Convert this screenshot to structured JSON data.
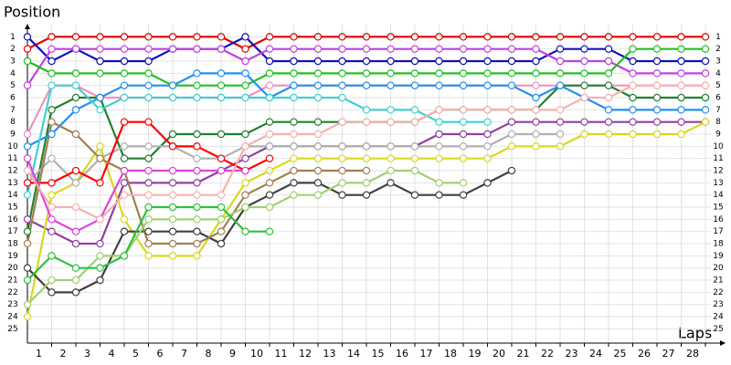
{
  "chart_data": {
    "type": "line",
    "y_label": "Position",
    "x_label": "Laps",
    "x": [
      0,
      1,
      2,
      3,
      4,
      5,
      6,
      7,
      8,
      9,
      10,
      11,
      12,
      13,
      14,
      15,
      16,
      17,
      18,
      19,
      20,
      21,
      22,
      23,
      24,
      25,
      26,
      27,
      28
    ],
    "xlim": [
      0,
      28
    ],
    "ylim": [
      26,
      0
    ],
    "xticks": [
      1,
      2,
      3,
      4,
      5,
      6,
      7,
      8,
      9,
      10,
      11,
      12,
      13,
      14,
      15,
      16,
      17,
      18,
      19,
      20,
      21,
      22,
      23,
      24,
      25,
      26,
      27,
      28
    ],
    "yticks": [
      1,
      2,
      3,
      4,
      5,
      6,
      7,
      8,
      9,
      10,
      11,
      12,
      13,
      14,
      15,
      16,
      17,
      18,
      19,
      20,
      21,
      22,
      23,
      24,
      25
    ],
    "grid": true,
    "series": [
      {
        "color": "#e00000",
        "values": [
          2,
          1,
          1,
          1,
          1,
          1,
          1,
          1,
          1,
          2,
          1,
          1,
          1,
          1,
          1,
          1,
          1,
          1,
          1,
          1,
          1,
          1,
          1,
          1,
          1,
          1,
          1,
          1,
          1
        ]
      },
      {
        "color": "#1010c0",
        "values": [
          1,
          3,
          2,
          3,
          3,
          3,
          2,
          2,
          2,
          1,
          3,
          3,
          3,
          3,
          3,
          3,
          3,
          3,
          3,
          3,
          3,
          3,
          2,
          2,
          2,
          3,
          3,
          3,
          3
        ]
      },
      {
        "color": "#c040e0",
        "values": [
          5,
          2,
          2,
          2,
          2,
          2,
          2,
          2,
          2,
          3,
          2,
          2,
          2,
          2,
          2,
          2,
          2,
          2,
          2,
          2,
          2,
          2,
          3,
          3,
          3,
          4,
          4,
          4,
          4
        ]
      },
      {
        "color": "#20c020",
        "values": [
          3,
          4,
          4,
          4,
          4,
          4,
          5,
          5,
          5,
          5,
          4,
          4,
          4,
          4,
          4,
          4,
          4,
          4,
          4,
          4,
          4,
          4,
          4,
          4,
          4,
          2,
          2,
          2,
          2
        ]
      },
      {
        "color": "#f090c0",
        "values": [
          9,
          5,
          5,
          6,
          6,
          6,
          6,
          6,
          6,
          6,
          5,
          5,
          5,
          5,
          5,
          5,
          5,
          5,
          5,
          5,
          5,
          5,
          5,
          5,
          5,
          5,
          5,
          5,
          5
        ]
      },
      {
        "color": "#208030",
        "values": [
          17,
          7,
          6,
          6,
          11,
          11,
          9,
          9,
          9,
          9,
          8,
          8,
          8,
          8,
          8,
          8,
          8,
          7,
          7,
          7,
          7,
          7,
          5,
          5,
          5,
          6,
          6,
          6,
          6
        ]
      },
      {
        "color": "#2090f0",
        "values": [
          10,
          9,
          7,
          6,
          5,
          5,
          5,
          4,
          4,
          4,
          6,
          5,
          5,
          5,
          5,
          5,
          5,
          5,
          5,
          5,
          5,
          6,
          5,
          6,
          7,
          7,
          7,
          7,
          7
        ]
      },
      {
        "color": "#40d0d0",
        "values": [
          14,
          5,
          5,
          7,
          6,
          6,
          6,
          6,
          6,
          6,
          6,
          6,
          6,
          6,
          7,
          7,
          7,
          8,
          8,
          8,
          null,
          null,
          null,
          null,
          null,
          null,
          null,
          null,
          null
        ]
      },
      {
        "color": "#9040a0",
        "values": [
          16,
          17,
          18,
          18,
          13,
          13,
          13,
          13,
          12,
          11,
          10,
          10,
          10,
          10,
          10,
          10,
          10,
          9,
          9,
          9,
          8,
          8,
          8,
          8,
          8,
          8,
          8,
          8,
          8
        ]
      },
      {
        "color": "#d8d820",
        "values": [
          24,
          14,
          13,
          10,
          16,
          19,
          19,
          19,
          16,
          13,
          12,
          11,
          11,
          11,
          11,
          11,
          11,
          11,
          11,
          11,
          10,
          10,
          10,
          9,
          9,
          9,
          9,
          9,
          8
        ]
      },
      {
        "color": "#b0b0b0",
        "values": [
          13,
          11,
          13,
          11,
          10,
          10,
          10,
          11,
          11,
          10,
          10,
          10,
          10,
          10,
          10,
          10,
          10,
          10,
          10,
          10,
          9,
          9,
          9,
          null,
          null,
          null,
          null,
          null,
          null
        ]
      },
      {
        "color": "#ff0000",
        "values": [
          13,
          13,
          12,
          13,
          8,
          8,
          10,
          10,
          11,
          12,
          11,
          null,
          null,
          null,
          null,
          null,
          null,
          null,
          null,
          null,
          null,
          null,
          null,
          null,
          null,
          null,
          null,
          null,
          null
        ]
      },
      {
        "color": "#404040",
        "values": [
          20,
          22,
          22,
          21,
          17,
          17,
          17,
          17,
          18,
          15,
          14,
          13,
          13,
          14,
          14,
          13,
          14,
          14,
          14,
          13,
          12,
          null,
          null,
          null,
          null,
          null,
          null,
          null,
          null
        ]
      },
      {
        "color": "#a08050",
        "values": [
          18,
          8,
          9,
          11,
          12,
          18,
          18,
          18,
          17,
          14,
          13,
          12,
          12,
          12,
          12,
          null,
          null,
          null,
          null,
          null,
          null,
          null,
          null,
          null,
          null,
          null,
          null,
          null,
          null
        ]
      },
      {
        "color": "#a0d070",
        "values": [
          23,
          21,
          21,
          19,
          19,
          16,
          16,
          16,
          16,
          15,
          15,
          14,
          14,
          13,
          13,
          12,
          12,
          13,
          13,
          null,
          null,
          null,
          null,
          null,
          null,
          null,
          null,
          null,
          null
        ]
      },
      {
        "color": "#30c040",
        "values": [
          21,
          19,
          20,
          20,
          19,
          15,
          15,
          15,
          15,
          17,
          17,
          null,
          null,
          null,
          null,
          null,
          null,
          null,
          null,
          null,
          null,
          null,
          null,
          null,
          null,
          null,
          null,
          null,
          null
        ]
      },
      {
        "color": "#e040e0",
        "values": [
          11,
          16,
          17,
          16,
          12,
          12,
          12,
          12,
          12,
          12,
          null,
          null,
          null,
          null,
          null,
          null,
          null,
          null,
          null,
          null,
          null,
          null,
          null,
          null,
          null,
          null,
          null,
          null,
          null
        ]
      },
      {
        "color": "#f8b0b0",
        "values": [
          12,
          15,
          15,
          16,
          14,
          14,
          14,
          14,
          14,
          10,
          9,
          9,
          9,
          8,
          8,
          8,
          8,
          7,
          7,
          7,
          7,
          7,
          7,
          6,
          6,
          5,
          5,
          5,
          5
        ]
      }
    ]
  }
}
